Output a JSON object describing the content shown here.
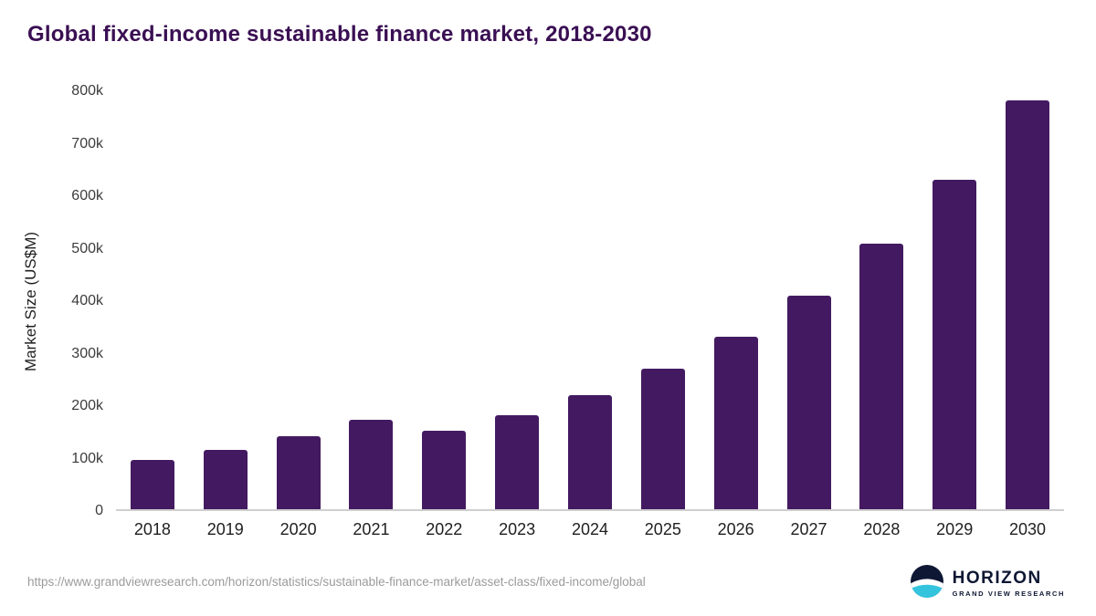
{
  "page": {
    "source_url": "https://www.grandviewresearch.com/horizon/statistics/sustainable-finance-market/asset-class/fixed-income/global"
  },
  "logo": {
    "name": "HORIZON",
    "subtitle": "GRAND VIEW RESEARCH"
  },
  "colors": {
    "bar": "#431a61",
    "title": "#3a0f53",
    "axis_line": "#cfcfcf",
    "source_text": "#9b9b9b",
    "logo_navy": "#0e1733",
    "logo_teal": "#35c4dd"
  },
  "chart_data": {
    "type": "bar",
    "title": "Global fixed-income sustainable finance market, 2018-2030",
    "categories": [
      "2018",
      "2019",
      "2020",
      "2021",
      "2022",
      "2023",
      "2024",
      "2025",
      "2026",
      "2027",
      "2028",
      "2029",
      "2030"
    ],
    "values": [
      95000,
      113000,
      139000,
      171000,
      151000,
      180000,
      218000,
      269000,
      331000,
      408000,
      508000,
      630000,
      783000
    ],
    "xlabel": "",
    "ylabel": "Market Size (US$M)",
    "ylim": [
      0,
      800000
    ],
    "ytick_labels": [
      "0",
      "100k",
      "200k",
      "300k",
      "400k",
      "500k",
      "600k",
      "700k",
      "800k"
    ],
    "grid": false,
    "legend": "none",
    "bar_color": "#431a61"
  }
}
